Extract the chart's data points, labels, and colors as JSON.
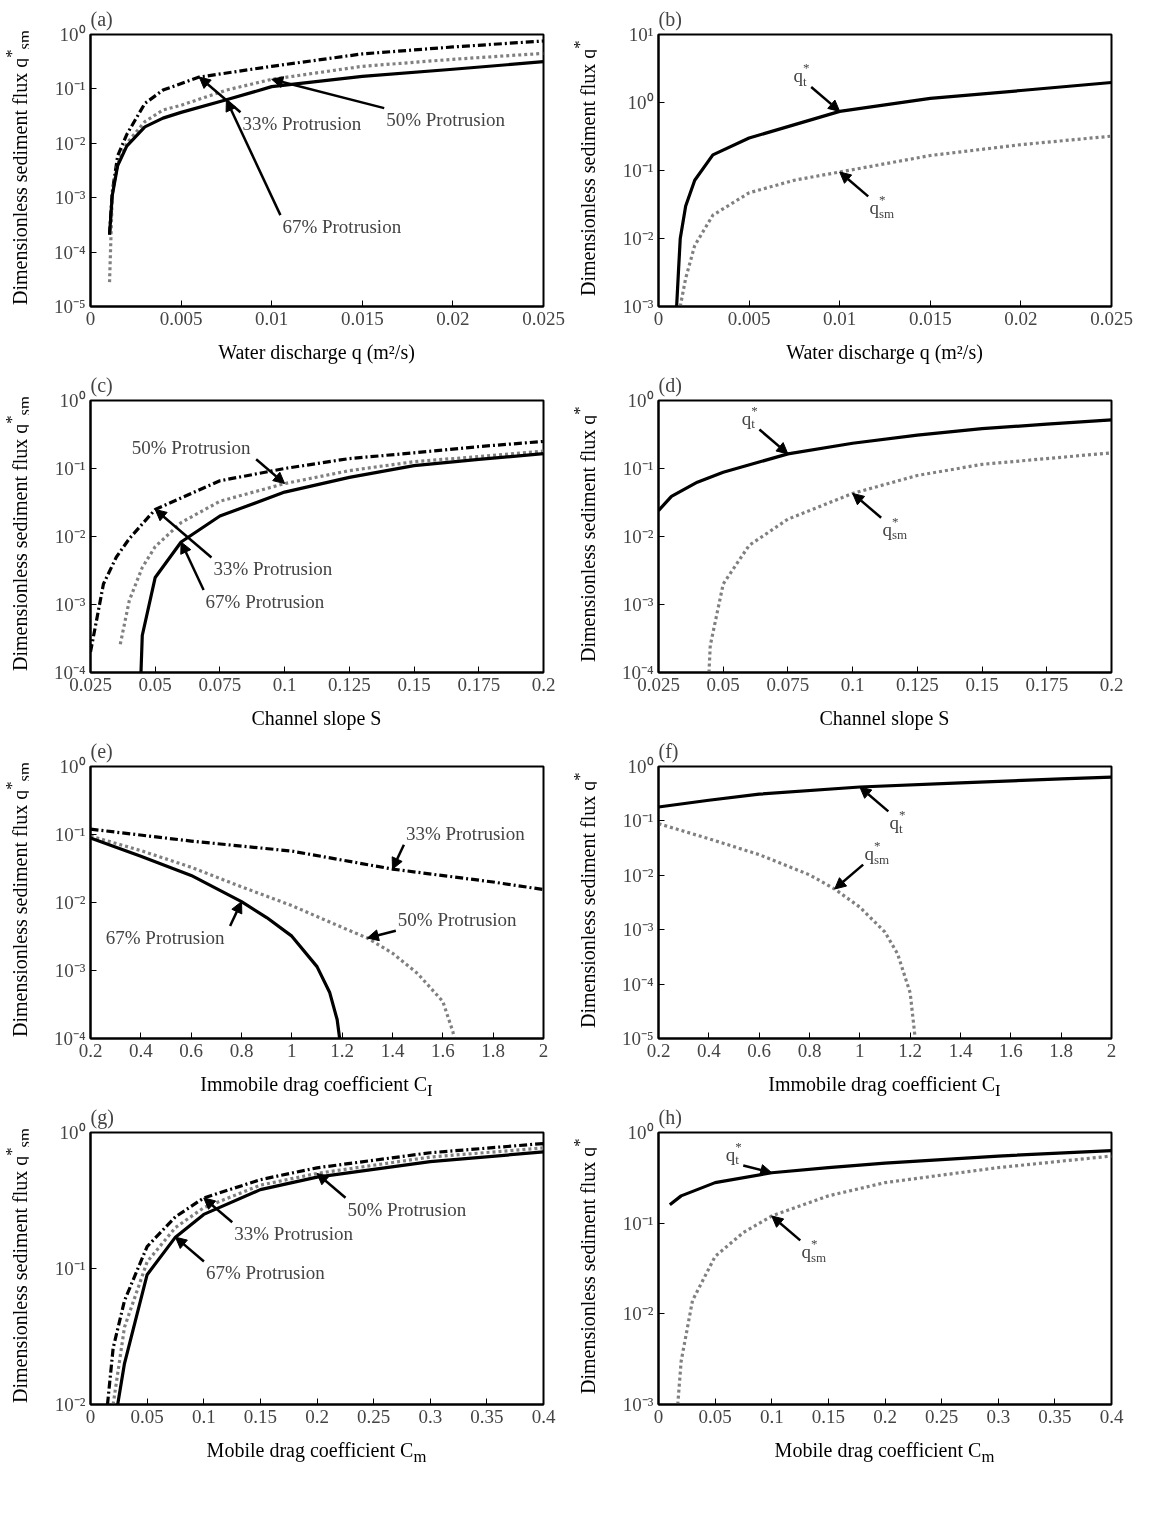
{
  "chart_data": [
    {
      "type": "line",
      "title": "(a)",
      "xlabel": "Water discharge q (m²/s)",
      "ylabel": "Dimensionless sediment flux q$^{*}$$_{sm}$",
      "log": true,
      "xlim": [
        0,
        0.025
      ],
      "ylim": [
        1e-05,
        1
      ],
      "xticks": [
        0,
        0.005,
        0.01,
        0.015,
        0.02,
        0.025
      ],
      "yticks": [
        {
          "value": 1e-05,
          "label": "10⁻⁵"
        },
        {
          "value": 0.0001,
          "label": "10⁻⁴"
        },
        {
          "value": 0.001,
          "label": "10⁻³"
        },
        {
          "value": 0.01,
          "label": "10⁻²"
        },
        {
          "value": 0.1,
          "label": "10⁻¹"
        },
        {
          "value": 1,
          "label": "10⁰"
        }
      ],
      "series": [
        {
          "color": "#000000",
          "line_style": "dashdot",
          "x": [
            0.00105,
            0.0012,
            0.0015,
            0.002,
            0.003,
            0.004,
            0.006,
            0.01,
            0.015,
            0.02,
            0.025
          ],
          "values": [
            0.00021,
            0.00126,
            0.0059,
            0.0145,
            0.054,
            0.095,
            0.165,
            0.26,
            0.44,
            0.59,
            0.76
          ]
        },
        {
          "color": "#808080",
          "line_style": "dotted",
          "x": [
            0.00105,
            0.0012,
            0.0015,
            0.002,
            0.003,
            0.004,
            0.005,
            0.0075,
            0.01,
            0.015,
            0.02,
            0.025
          ],
          "values": [
            2.8e-05,
            0.0011,
            0.0042,
            0.01,
            0.025,
            0.041,
            0.05,
            0.095,
            0.15,
            0.26,
            0.35,
            0.45
          ]
        },
        {
          "color": "#000000",
          "line_style": "solid",
          "x": [
            0.00105,
            0.0012,
            0.0015,
            0.002,
            0.003,
            0.004,
            0.005,
            0.0075,
            0.01,
            0.015,
            0.02,
            0.025
          ],
          "values": [
            0.00021,
            0.0011,
            0.0039,
            0.0089,
            0.02,
            0.029,
            0.037,
            0.063,
            0.11,
            0.17,
            0.23,
            0.316
          ]
        }
      ],
      "annotations": [
        {
          "text": "33% Protrusion",
          "x": 0.006,
          "y": 0.165
        },
        {
          "text": "50% Protrusion",
          "x": 0.01,
          "y": 0.15
        },
        {
          "text": "67% Protrusion",
          "x": 0.0075,
          "y": 0.063
        }
      ]
    },
    {
      "type": "line",
      "title": "(b)",
      "xlabel": "Water discharge q (m²/s)",
      "ylabel": "Dimensionless sediment flux q$^{*}$",
      "log": true,
      "xlim": [
        0,
        0.025
      ],
      "ylim": [
        0.001,
        10
      ],
      "xticks": [
        0,
        0.005,
        0.01,
        0.015,
        0.02,
        0.025
      ],
      "yticks": [
        {
          "value": 0.001,
          "label": "10⁻³"
        },
        {
          "value": 0.01,
          "label": "10⁻²"
        },
        {
          "value": 0.1,
          "label": "10⁻¹"
        },
        {
          "value": 1,
          "label": "10⁰"
        },
        {
          "value": 10,
          "label": "10¹"
        }
      ],
      "series": [
        {
          "color": "#000000",
          "line_style": "solid",
          "x": [
            0.001,
            0.0011,
            0.0012,
            0.0015,
            0.002,
            0.003,
            0.005,
            0.01,
            0.015,
            0.02,
            0.025
          ],
          "values": [
            0.001,
            0.0032,
            0.01,
            0.03,
            0.072,
            0.17,
            0.3,
            0.74,
            1.15,
            1.5,
            1.97
          ]
        },
        {
          "color": "#808080",
          "line_style": "dotted",
          "x": [
            0.0012,
            0.0015,
            0.002,
            0.003,
            0.005,
            0.0075,
            0.01,
            0.015,
            0.02,
            0.025
          ],
          "values": [
            0.001,
            0.0026,
            0.0079,
            0.022,
            0.047,
            0.072,
            0.095,
            0.166,
            0.24,
            0.32
          ]
        }
      ],
      "annotations": [
        {
          "text": "q$^{*}$$_{t}$",
          "x": 0.01,
          "y": 0.74
        },
        {
          "text": "q$^{*}$$_{sm}$",
          "x": 0.01,
          "y": 0.095
        }
      ]
    },
    {
      "type": "line",
      "title": "(c)",
      "xlabel": "Channel slope   S",
      "ylabel": "Dimensionless sediment flux q$^{*}$$_{sm}$",
      "log": true,
      "xlim": [
        0.025,
        0.2
      ],
      "ylim": [
        0.0001,
        1
      ],
      "xticks": [
        0.025,
        0.05,
        0.075,
        0.1,
        0.125,
        0.15,
        0.175,
        0.2
      ],
      "yticks": [
        {
          "value": 0.0001,
          "label": "10⁻⁴"
        },
        {
          "value": 0.001,
          "label": "10⁻³"
        },
        {
          "value": 0.01,
          "label": "10⁻²"
        },
        {
          "value": 0.1,
          "label": "10⁻¹"
        },
        {
          "value": 1,
          "label": "10⁰"
        }
      ],
      "series": [
        {
          "color": "#000000",
          "line_style": "dashdot",
          "x": [
            0.025,
            0.03,
            0.035,
            0.04,
            0.05,
            0.075,
            0.1,
            0.125,
            0.15,
            0.175,
            0.2
          ],
          "values": [
            0.0002,
            0.002,
            0.005,
            0.0093,
            0.025,
            0.066,
            0.1,
            0.14,
            0.17,
            0.21,
            0.25
          ]
        },
        {
          "color": "#808080",
          "line_style": "dotted",
          "x": [
            0.0365,
            0.04,
            0.045,
            0.05,
            0.06,
            0.075,
            0.1,
            0.125,
            0.15,
            0.175,
            0.2
          ],
          "values": [
            0.00026,
            0.00115,
            0.0035,
            0.0071,
            0.016,
            0.033,
            0.06,
            0.093,
            0.126,
            0.15,
            0.18
          ]
        },
        {
          "color": "#000000",
          "line_style": "solid",
          "x": [
            0.0445,
            0.045,
            0.05,
            0.06,
            0.075,
            0.1,
            0.125,
            0.15,
            0.175,
            0.2
          ],
          "values": [
            0.0001,
            0.00035,
            0.0025,
            0.0083,
            0.02,
            0.045,
            0.074,
            0.11,
            0.136,
            0.165
          ]
        }
      ],
      "annotations": [
        {
          "text": "33% Protrusion",
          "x": 0.05,
          "y": 0.025
        },
        {
          "text": "50% Protrusion",
          "x": 0.1,
          "y": 0.06
        },
        {
          "text": "67% Protrusion",
          "x": 0.06,
          "y": 0.0083
        }
      ]
    },
    {
      "type": "line",
      "title": "(d)",
      "xlabel": "Channel slope  S",
      "ylabel": "Dimensionless sediment flux q$^{*}$",
      "log": true,
      "xlim": [
        0.025,
        0.2
      ],
      "ylim": [
        0.0001,
        1
      ],
      "xticks": [
        0.025,
        0.05,
        0.075,
        0.1,
        0.125,
        0.15,
        0.175,
        0.2
      ],
      "yticks": [
        {
          "value": 0.0001,
          "label": "10⁻⁴"
        },
        {
          "value": 0.001,
          "label": "10⁻³"
        },
        {
          "value": 0.01,
          "label": "10⁻²"
        },
        {
          "value": 0.1,
          "label": "10⁻¹"
        },
        {
          "value": 1,
          "label": "10⁰"
        }
      ],
      "series": [
        {
          "color": "#000000",
          "line_style": "solid",
          "x": [
            0.025,
            0.03,
            0.04,
            0.05,
            0.075,
            0.1,
            0.125,
            0.15,
            0.175,
            0.2
          ],
          "values": [
            0.024,
            0.039,
            0.063,
            0.088,
            0.164,
            0.235,
            0.31,
            0.385,
            0.45,
            0.52
          ]
        },
        {
          "color": "#808080",
          "line_style": "dotted",
          "x": [
            0.0445,
            0.045,
            0.05,
            0.06,
            0.075,
            0.1,
            0.125,
            0.15,
            0.175,
            0.2
          ],
          "values": [
            0.0001,
            0.00025,
            0.002,
            0.0074,
            0.018,
            0.043,
            0.079,
            0.115,
            0.14,
            0.17
          ]
        }
      ],
      "annotations": [
        {
          "text": "q$^{*}$$_{t}$",
          "x": 0.075,
          "y": 0.164
        },
        {
          "text": "q$^{*}$$_{sm}$",
          "x": 0.1,
          "y": 0.043
        }
      ]
    },
    {
      "type": "line",
      "title": "(e)",
      "xlabel": "Immobile drag coefficient  C$_{I}$",
      "ylabel": "Dimensionless sediment flux q$^{*}$$_{sm}$",
      "log": true,
      "xlim": [
        0.2,
        2
      ],
      "ylim": [
        0.0001,
        1
      ],
      "xticks": [
        0.2,
        0.4,
        0.6,
        0.8,
        1,
        1.2,
        1.4,
        1.6,
        1.8,
        2
      ],
      "yticks": [
        {
          "value": 0.0001,
          "label": "10⁻⁴"
        },
        {
          "value": 0.001,
          "label": "10⁻³"
        },
        {
          "value": 0.01,
          "label": "10⁻²"
        },
        {
          "value": 0.1,
          "label": "10⁻¹"
        },
        {
          "value": 1,
          "label": "10⁰"
        }
      ],
      "series": [
        {
          "color": "#000000",
          "line_style": "dashdot",
          "x": [
            0.2,
            0.6,
            1,
            1.4,
            1.8,
            2
          ],
          "values": [
            0.12,
            0.08,
            0.057,
            0.031,
            0.02,
            0.0155
          ]
        },
        {
          "color": "#808080",
          "line_style": "dotted",
          "x": [
            0.2,
            0.4,
            0.6,
            0.8,
            1,
            1.2,
            1.3,
            1.4,
            1.5,
            1.6,
            1.64,
            1.645
          ],
          "values": [
            0.095,
            0.058,
            0.033,
            0.017,
            0.009,
            0.0043,
            0.003,
            0.0018,
            0.0009,
            0.00035,
            0.000126,
            0.0001
          ]
        },
        {
          "color": "#000000",
          "line_style": "solid",
          "x": [
            0.2,
            0.4,
            0.6,
            0.8,
            0.9,
            1,
            1.1,
            1.15,
            1.18,
            1.19
          ],
          "values": [
            0.089,
            0.048,
            0.025,
            0.0103,
            0.006,
            0.0032,
            0.00114,
            0.00048,
            0.00019,
            0.0001
          ]
        }
      ],
      "annotations": [
        {
          "text": "33% Protrusion",
          "x": 1.4,
          "y": 0.031
        },
        {
          "text": "50% Protrusion",
          "x": 1.3,
          "y": 0.003
        },
        {
          "text": "67% Protrusion",
          "x": 0.8,
          "y": 0.0103
        }
      ]
    },
    {
      "type": "line",
      "title": "(f)",
      "xlabel": "Immobile drag coefficient  C$_{I}$",
      "ylabel": "Dimensionless sediment flux q$^{*}$",
      "log": true,
      "xlim": [
        0.2,
        2
      ],
      "ylim": [
        1e-05,
        1
      ],
      "xticks": [
        0.2,
        0.4,
        0.6,
        0.8,
        1,
        1.2,
        1.4,
        1.6,
        1.8,
        2
      ],
      "yticks": [
        {
          "value": 1e-05,
          "label": "10⁻⁵"
        },
        {
          "value": 0.0001,
          "label": "10⁻⁴"
        },
        {
          "value": 0.001,
          "label": "10⁻³"
        },
        {
          "value": 0.01,
          "label": "10⁻²"
        },
        {
          "value": 0.1,
          "label": "10⁻¹"
        },
        {
          "value": 1,
          "label": "10⁰"
        }
      ],
      "series": [
        {
          "color": "#000000",
          "line_style": "solid",
          "x": [
            0.2,
            0.4,
            0.6,
            1,
            1.4,
            1.8,
            2
          ],
          "values": [
            0.18,
            0.24,
            0.31,
            0.42,
            0.5,
            0.59,
            0.64
          ]
        },
        {
          "color": "#808080",
          "line_style": "dotted",
          "x": [
            0.2,
            0.4,
            0.6,
            0.8,
            0.9,
            1,
            1.1,
            1.15,
            1.2,
            1.22
          ],
          "values": [
            0.089,
            0.047,
            0.024,
            0.0102,
            0.0056,
            0.0026,
            0.0009,
            0.00036,
            6.9e-05,
            1e-05
          ]
        }
      ],
      "annotations": [
        {
          "text": "q$^{*}$$_{t}$",
          "x": 1,
          "y": 0.42
        },
        {
          "text": "q$^{*}$$_{sm}$",
          "x": 0.9,
          "y": 0.0056
        }
      ]
    },
    {
      "type": "line",
      "title": "(g)",
      "xlabel": "Mobile drag coefficient  C$_{m}$",
      "ylabel": "Dimensionless sediment flux q$^{*}$$_{sm}$",
      "log": true,
      "xlim": [
        0,
        0.4
      ],
      "ylim": [
        0.01,
        1
      ],
      "xticks": [
        0,
        0.05,
        0.1,
        0.15,
        0.2,
        0.25,
        0.3,
        0.35,
        0.4
      ],
      "yticks": [
        {
          "value": 0.01,
          "label": "10⁻²"
        },
        {
          "value": 0.1,
          "label": "10⁻¹"
        },
        {
          "value": 1,
          "label": "10⁰"
        }
      ],
      "series": [
        {
          "color": "#000000",
          "line_style": "dashdot",
          "x": [
            0.015,
            0.02,
            0.03,
            0.05,
            0.075,
            0.1,
            0.15,
            0.2,
            0.3,
            0.4
          ],
          "values": [
            0.01,
            0.026,
            0.058,
            0.145,
            0.24,
            0.33,
            0.45,
            0.55,
            0.71,
            0.83
          ]
        },
        {
          "color": "#808080",
          "line_style": "dotted",
          "x": [
            0.02,
            0.03,
            0.05,
            0.075,
            0.1,
            0.15,
            0.2,
            0.3,
            0.4
          ],
          "values": [
            0.01,
            0.037,
            0.112,
            0.2,
            0.28,
            0.41,
            0.5,
            0.66,
            0.77
          ]
        },
        {
          "color": "#000000",
          "line_style": "solid",
          "x": [
            0.024,
            0.03,
            0.05,
            0.075,
            0.1,
            0.15,
            0.2,
            0.3,
            0.4
          ],
          "values": [
            0.01,
            0.02,
            0.09,
            0.17,
            0.25,
            0.38,
            0.47,
            0.61,
            0.72
          ]
        }
      ],
      "annotations": [
        {
          "text": "33% Protrusion",
          "x": 0.1,
          "y": 0.33
        },
        {
          "text": "50% Protrusion",
          "x": 0.2,
          "y": 0.5
        },
        {
          "text": "67% Protrusion",
          "x": 0.075,
          "y": 0.17
        }
      ]
    },
    {
      "type": "line",
      "title": "(h)",
      "xlabel": "Mobile drag coefficient  C$_{m}$",
      "ylabel": "Dimensionless sediment flux q$^{*}$",
      "log": true,
      "xlim": [
        0,
        0.4
      ],
      "ylim": [
        0.001,
        1
      ],
      "xticks": [
        0,
        0.05,
        0.1,
        0.15,
        0.2,
        0.25,
        0.3,
        0.35,
        0.4
      ],
      "yticks": [
        {
          "value": 0.001,
          "label": "10⁻³"
        },
        {
          "value": 0.01,
          "label": "10⁻²"
        },
        {
          "value": 0.1,
          "label": "10⁻¹"
        },
        {
          "value": 1,
          "label": "10⁰"
        }
      ],
      "series": [
        {
          "color": "#000000",
          "line_style": "solid",
          "x": [
            0.01,
            0.02,
            0.05,
            0.1,
            0.15,
            0.2,
            0.3,
            0.4
          ],
          "values": [
            0.16,
            0.2,
            0.28,
            0.36,
            0.41,
            0.46,
            0.55,
            0.63
          ]
        },
        {
          "color": "#808080",
          "line_style": "dotted",
          "x": [
            0.017,
            0.02,
            0.03,
            0.05,
            0.075,
            0.1,
            0.15,
            0.2,
            0.3,
            0.4
          ],
          "values": [
            0.001,
            0.003,
            0.014,
            0.043,
            0.079,
            0.12,
            0.2,
            0.28,
            0.41,
            0.55
          ]
        }
      ],
      "annotations": [
        {
          "text": "q$^{*}$$_{t}$",
          "x": 0.1,
          "y": 0.36
        },
        {
          "text": "q$^{*}$$_{sm}$",
          "x": 0.1,
          "y": 0.12
        }
      ]
    }
  ]
}
